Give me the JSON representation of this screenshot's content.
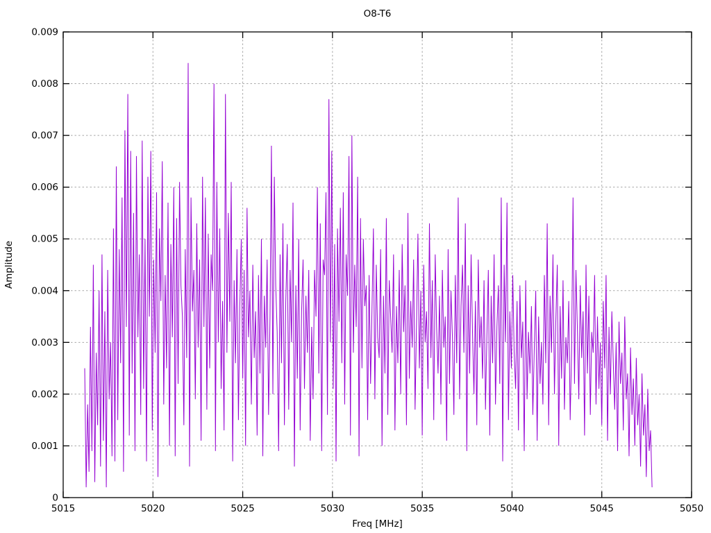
{
  "figure": {
    "background": "#ffffff"
  },
  "chart_data": {
    "type": "line",
    "style": "impulse-like noisy spectrum polyline",
    "title": "O8-T6",
    "xlabel": "Freq [MHz]",
    "ylabel": "Amplitude",
    "xlim": [
      5015,
      5050
    ],
    "ylim": [
      0,
      0.009
    ],
    "grid": true,
    "legend": "none",
    "x_ticks": [
      5015,
      5020,
      5025,
      5030,
      5035,
      5040,
      5045,
      5050
    ],
    "x_tick_labels": [
      "5015",
      "5020",
      "5025",
      "5030",
      "5035",
      "5040",
      "5045",
      "5050"
    ],
    "y_ticks": [
      0,
      0.001,
      0.002,
      0.003,
      0.004,
      0.005,
      0.006,
      0.007,
      0.008,
      0.009
    ],
    "y_tick_labels": [
      "0",
      "0.001",
      "0.002",
      "0.003",
      "0.004",
      "0.005",
      "0.006",
      "0.007",
      "0.008",
      "0.009"
    ],
    "line_color": "#9400d3",
    "grid_color": "#a8a8a8",
    "border_color": "#000000",
    "x_start": 5016.2,
    "x_step": 0.08,
    "amplitude_scale": 0.0001,
    "values": [
      25,
      2,
      18,
      5,
      33,
      9,
      45,
      3,
      28,
      14,
      40,
      6,
      47,
      11,
      36,
      2,
      44,
      19,
      30,
      8,
      52,
      7,
      64,
      15,
      48,
      26,
      58,
      5,
      71,
      33,
      78,
      12,
      67,
      24,
      55,
      9,
      66,
      31,
      47,
      16,
      69,
      21,
      50,
      7,
      62,
      35,
      67,
      13,
      46,
      28,
      59,
      4,
      52,
      38,
      65,
      18,
      43,
      25,
      57,
      10,
      49,
      31,
      60,
      8,
      54,
      22,
      61,
      41,
      35,
      14,
      48,
      27,
      84,
      6,
      58,
      36,
      44,
      19,
      53,
      29,
      46,
      11,
      62,
      33,
      58,
      17,
      51,
      25,
      47,
      40,
      80,
      9,
      61,
      30,
      52,
      21,
      38,
      13,
      78,
      28,
      55,
      34,
      61,
      7,
      42,
      26,
      48,
      15,
      37,
      50,
      23,
      44,
      10,
      56,
      31,
      40,
      18,
      45,
      27,
      36,
      12,
      43,
      24,
      50,
      8,
      39,
      29,
      46,
      16,
      35,
      68,
      20,
      62,
      41,
      32,
      9,
      47,
      26,
      53,
      14,
      38,
      49,
      17,
      44,
      30,
      57,
      6,
      41,
      23,
      50,
      13,
      36,
      46,
      21,
      39,
      28,
      44,
      11,
      33,
      19,
      44,
      35,
      60,
      24,
      53,
      9,
      46,
      43,
      59,
      16,
      77,
      30,
      67,
      21,
      49,
      7,
      52,
      34,
      56,
      26,
      59,
      18,
      47,
      39,
      66,
      12,
      70,
      28,
      45,
      33,
      62,
      8,
      54,
      25,
      50,
      37,
      41,
      15,
      43,
      22,
      36,
      52,
      19,
      45,
      31,
      27,
      48,
      10,
      39,
      24,
      54,
      16,
      42,
      35,
      28,
      47,
      13,
      37,
      26,
      44,
      20,
      49,
      32,
      41,
      14,
      55,
      23,
      38,
      29,
      46,
      17,
      34,
      51,
      25,
      40,
      12,
      45,
      30,
      36,
      21,
      53,
      27,
      42,
      15,
      47,
      33,
      24,
      39,
      18,
      44,
      29,
      35,
      11,
      48,
      22,
      40,
      31,
      16,
      43,
      26,
      58,
      19,
      37,
      45,
      28,
      53,
      9,
      41,
      24,
      47,
      32,
      20,
      38,
      14,
      46,
      29,
      35,
      23,
      42,
      17,
      31,
      44,
      12,
      39,
      26,
      47,
      18,
      33,
      41,
      22,
      58,
      7,
      45,
      30,
      57,
      15,
      36,
      25,
      43,
      28,
      21,
      38,
      13,
      41,
      27,
      34,
      9,
      42,
      19,
      32,
      24,
      37,
      16,
      29,
      40,
      11,
      35,
      22,
      30,
      18,
      43,
      26,
      53,
      14,
      39,
      28,
      47,
      20,
      34,
      45,
      10,
      37,
      23,
      42,
      17,
      31,
      26,
      38,
      15,
      29,
      58,
      22,
      44,
      33,
      19,
      41,
      27,
      36,
      12,
      45,
      24,
      39,
      16,
      32,
      28,
      43,
      18,
      35,
      21,
      30,
      14,
      38,
      25,
      43,
      11,
      33,
      20,
      36,
      26,
      17,
      30,
      9,
      34,
      22,
      28,
      13,
      35,
      19,
      24,
      8,
      29,
      16,
      23,
      10,
      27,
      14,
      20,
      6,
      24,
      12,
      18,
      4,
      21,
      9,
      13,
      2
    ]
  }
}
